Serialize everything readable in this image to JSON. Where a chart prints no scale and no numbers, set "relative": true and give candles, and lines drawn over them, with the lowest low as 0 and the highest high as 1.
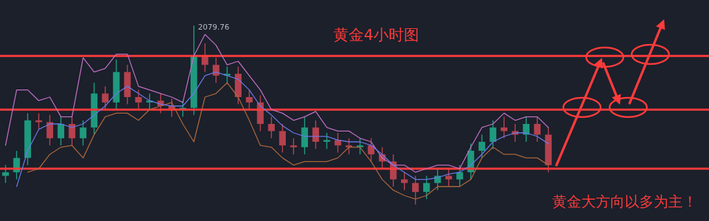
{
  "chart_data": {
    "type": "candlestick",
    "title": "黄金4小时图",
    "relative": true,
    "categories": [
      null,
      null,
      null,
      null,
      null,
      null,
      null,
      null,
      null,
      null,
      null,
      null,
      null,
      null,
      null,
      null,
      null,
      null,
      null,
      null,
      null,
      null,
      null,
      null,
      null,
      null,
      null,
      null,
      null,
      null,
      null,
      null,
      null,
      null,
      null,
      null,
      null,
      null,
      null,
      null,
      null,
      null,
      null,
      null,
      null,
      null,
      null,
      null,
      null,
      null,
      null,
      null,
      null,
      null,
      null,
      null,
      null,
      null,
      null,
      null,
      null,
      null,
      null,
      null
    ],
    "ohlc": [
      [
        0.16,
        0.22,
        0.12,
        0.18
      ],
      [
        0.18,
        0.3,
        0.14,
        0.26
      ],
      [
        0.26,
        0.51,
        0.22,
        0.47
      ],
      [
        0.47,
        0.51,
        0.42,
        0.46
      ],
      [
        0.46,
        0.5,
        0.33,
        0.37
      ],
      [
        0.37,
        0.49,
        0.33,
        0.45
      ],
      [
        0.45,
        0.49,
        0.33,
        0.37
      ],
      [
        0.37,
        0.47,
        0.33,
        0.43
      ],
      [
        0.43,
        0.68,
        0.39,
        0.62
      ],
      [
        0.62,
        0.66,
        0.53,
        0.57
      ],
      [
        0.57,
        0.81,
        0.53,
        0.74
      ],
      [
        0.74,
        0.78,
        0.56,
        0.6
      ],
      [
        0.6,
        0.64,
        0.53,
        0.57
      ],
      [
        0.57,
        0.62,
        0.53,
        0.58
      ],
      [
        0.58,
        0.62,
        0.51,
        0.55
      ],
      [
        0.55,
        0.59,
        0.49,
        0.53
      ],
      [
        0.53,
        0.58,
        0.49,
        0.54
      ],
      [
        0.54,
        1,
        0.5,
        0.83
      ],
      [
        0.83,
        0.9,
        0.74,
        0.78
      ],
      [
        0.78,
        0.82,
        0.68,
        0.72
      ],
      [
        0.72,
        0.77,
        0.68,
        0.73
      ],
      [
        0.73,
        0.77,
        0.56,
        0.6
      ],
      [
        0.6,
        0.64,
        0.53,
        0.57
      ],
      [
        0.57,
        0.61,
        0.41,
        0.45
      ],
      [
        0.45,
        0.49,
        0.37,
        0.41
      ],
      [
        0.41,
        0.45,
        0.29,
        0.33
      ],
      [
        0.33,
        0.37,
        0.28,
        0.32
      ],
      [
        0.32,
        0.49,
        0.28,
        0.43
      ],
      [
        0.43,
        0.47,
        0.31,
        0.35
      ],
      [
        0.35,
        0.4,
        0.31,
        0.36
      ],
      [
        0.36,
        0.4,
        0.29,
        0.33
      ],
      [
        0.33,
        0.37,
        0.28,
        0.32
      ],
      [
        0.32,
        0.37,
        0.28,
        0.33
      ],
      [
        0.33,
        0.37,
        0.24,
        0.28
      ],
      [
        0.28,
        0.32,
        0.2,
        0.24
      ],
      [
        0.24,
        0.28,
        0.1,
        0.14
      ],
      [
        0.14,
        0.18,
        0.08,
        0.12
      ],
      [
        0.12,
        0.16,
        0,
        0.07
      ],
      [
        0.07,
        0.16,
        0.03,
        0.12
      ],
      [
        0.12,
        0.2,
        0.08,
        0.16
      ],
      [
        0.16,
        0.2,
        0.1,
        0.14
      ],
      [
        0.14,
        0.22,
        0.1,
        0.18
      ],
      [
        0.18,
        0.34,
        0.14,
        0.3
      ],
      [
        0.3,
        0.39,
        0.26,
        0.35
      ],
      [
        0.35,
        0.47,
        0.31,
        0.43
      ],
      [
        0.43,
        0.49,
        0.37,
        0.41
      ],
      [
        0.41,
        0.45,
        0.35,
        0.39
      ],
      [
        0.39,
        0.49,
        0.35,
        0.45
      ],
      [
        0.45,
        0.49,
        0.35,
        0.39
      ],
      [
        0.39,
        0.43,
        0.18,
        0.22
      ],
      null,
      null,
      null,
      null,
      null,
      null,
      null,
      null,
      null,
      null,
      null,
      null,
      null,
      null
    ],
    "series": [
      {
        "type": "line",
        "color": "#c46fc4",
        "values": [
          0.33,
          0.64,
          0.64,
          0.58,
          0.6,
          0.49,
          0.49,
          0.82,
          0.74,
          0.76,
          0.84,
          0.84,
          0.66,
          0.64,
          0.62,
          0.6,
          0.57,
          0.83,
          0.95,
          0.89,
          0.78,
          0.8,
          0.72,
          0.64,
          0.53,
          0.51,
          0.47,
          0.49,
          0.52,
          0.43,
          0.41,
          0.41,
          0.37,
          0.35,
          0.26,
          0.22,
          0.22,
          0.18,
          0.2,
          0.22,
          0.22,
          0.2,
          0.32,
          0.43,
          0.45,
          0.51,
          0.47,
          0.49,
          0.49,
          0.43,
          null,
          null,
          null,
          null,
          null,
          null,
          null,
          null,
          null,
          null,
          null,
          null,
          null,
          null
        ]
      },
      {
        "type": "line",
        "color": "#b0663a",
        "values": [
          null,
          null,
          0.18,
          0.2,
          0.28,
          0.32,
          0.33,
          0.26,
          0.39,
          0.49,
          0.51,
          0.51,
          0.47,
          0.53,
          0.55,
          0.57,
          0.45,
          0.35,
          0.6,
          0.62,
          0.68,
          0.6,
          0.47,
          0.33,
          0.32,
          0.26,
          0.22,
          0.24,
          0.24,
          0.24,
          0.26,
          0.32,
          0.32,
          0.24,
          0.14,
          0.08,
          0.05,
          0.03,
          0.05,
          0.1,
          0.1,
          0.1,
          0.14,
          0.26,
          0.32,
          0.28,
          0.28,
          0.26,
          0.26,
          0.22,
          null,
          null,
          null,
          null,
          null,
          null,
          null,
          null,
          null,
          null,
          null,
          null,
          null,
          null
        ]
      },
      {
        "type": "line",
        "color": "#6a78e8",
        "values": [
          null,
          0.1,
          0.3,
          0.42,
          0.45,
          0.45,
          0.43,
          0.45,
          0.5,
          0.55,
          0.62,
          0.66,
          0.62,
          0.58,
          0.56,
          0.55,
          0.55,
          0.62,
          0.72,
          0.74,
          0.72,
          0.7,
          0.64,
          0.55,
          0.5,
          0.44,
          0.4,
          0.38,
          0.38,
          0.38,
          0.36,
          0.35,
          0.35,
          0.33,
          0.28,
          0.22,
          0.18,
          0.14,
          0.14,
          0.15,
          0.17,
          0.18,
          0.22,
          0.28,
          0.35,
          0.38,
          0.4,
          0.4,
          0.38,
          0.34,
          null,
          null,
          null,
          null,
          null,
          null,
          null,
          null,
          null,
          null,
          null,
          null,
          null,
          null
        ]
      }
    ],
    "ref_lines": [
      {
        "axis": "y",
        "value": 0.83,
        "color": "#ff3b3b"
      },
      {
        "axis": "y",
        "value": 0.53,
        "color": "#ff3b3b"
      },
      {
        "axis": "y",
        "value": 0.2,
        "color": "#ff3b3b"
      }
    ],
    "annotations": [
      "2079.76",
      "黄金大方向以多为主！"
    ]
  }
}
